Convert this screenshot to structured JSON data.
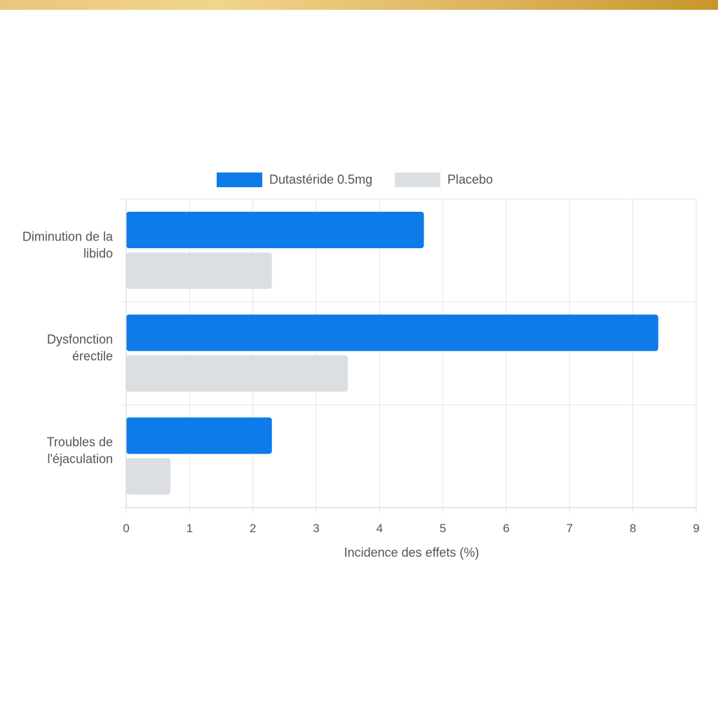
{
  "chart_data": {
    "type": "bar",
    "orientation": "horizontal",
    "categories": [
      [
        "Diminution de la",
        "libido"
      ],
      [
        "Dysfonction",
        "érectile"
      ],
      [
        "Troubles de",
        "l'éjaculation"
      ]
    ],
    "series": [
      {
        "name": "Dutastéride 0.5mg",
        "values": [
          4.7,
          8.4,
          2.3
        ],
        "color": "#0d7be8"
      },
      {
        "name": "Placebo",
        "values": [
          2.3,
          3.5,
          0.7
        ],
        "color": "#dcdfe2"
      }
    ],
    "xlabel": "Incidence des effets (%)",
    "ylabel": "",
    "xlim": [
      0,
      9
    ],
    "xticks": [
      "0",
      "1",
      "2",
      "3",
      "4",
      "5",
      "6",
      "7",
      "8",
      "9"
    ],
    "grid": true,
    "legend_position": "top"
  },
  "colors": {
    "grid": "#e6e6e6",
    "axis": "#cfcfcf",
    "text": "#555555"
  }
}
